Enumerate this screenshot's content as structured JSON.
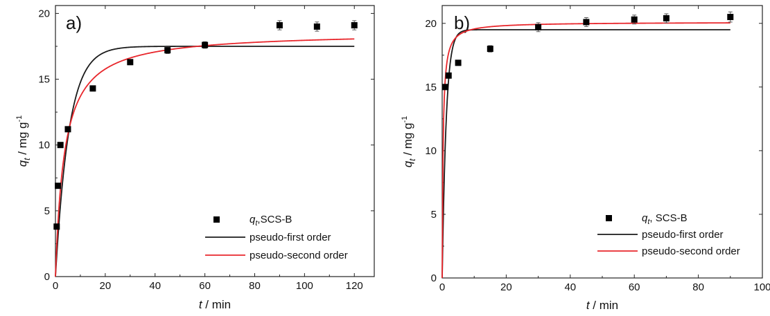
{
  "chart_data": [
    {
      "type": "scatter",
      "panel_label": "a)",
      "xlabel_italic": "t",
      "xlabel_rest": " / min",
      "ylabel_main": "q",
      "ylabel_sub": "t",
      "ylabel_rest": " / mg g",
      "ylabel_sup": "-1",
      "xlim": [
        0,
        128
      ],
      "ylim": [
        0,
        20.6
      ],
      "xticks": [
        0,
        20,
        40,
        60,
        80,
        100,
        120
      ],
      "yticks": [
        0,
        5,
        10,
        15,
        20
      ],
      "legend_position": "bottom-center",
      "series": [
        {
          "name_italic": "q",
          "name_sub": "t",
          "name_rest": ",SCS-B",
          "kind": "points",
          "color": "#000000",
          "x": [
            0.5,
            1,
            2,
            5,
            15,
            30,
            45,
            60,
            90,
            105,
            120
          ],
          "y": [
            3.8,
            6.9,
            10.0,
            11.2,
            14.3,
            16.3,
            17.2,
            17.6,
            19.1,
            19.0,
            19.1
          ],
          "err": [
            0.1,
            0.1,
            0.1,
            0.15,
            0.2,
            0.2,
            0.25,
            0.25,
            0.35,
            0.35,
            0.35
          ]
        },
        {
          "name": "pseudo-first order",
          "kind": "pfo",
          "color": "#1a1a1a",
          "qe": 17.5,
          "k1": 0.185
        },
        {
          "name": "pseudo-second order",
          "kind": "pso",
          "color": "#e8262b",
          "qe": 18.6,
          "k2": 0.015
        }
      ]
    },
    {
      "type": "scatter",
      "panel_label": "b)",
      "xlabel_italic": "t",
      "xlabel_rest": " / min",
      "ylabel_main": "q",
      "ylabel_sub": "t",
      "ylabel_rest": " / mg g",
      "ylabel_sup": "-1",
      "xlim": [
        0,
        100
      ],
      "ylim": [
        0,
        21.4
      ],
      "xticks": [
        0,
        20,
        40,
        60,
        80,
        100
      ],
      "yticks": [
        0,
        5,
        10,
        15,
        20
      ],
      "legend_position": "bottom-center",
      "series": [
        {
          "name_italic": "q",
          "name_sub": "t",
          "name_rest": ", SCS-B",
          "kind": "points",
          "color": "#000000",
          "x": [
            1,
            2,
            5,
            15,
            30,
            45,
            60,
            70,
            90
          ],
          "y": [
            15.0,
            15.9,
            16.9,
            18.0,
            19.7,
            20.1,
            20.3,
            20.4,
            20.5
          ],
          "err": [
            0.15,
            0.15,
            0.2,
            0.25,
            0.35,
            0.35,
            0.35,
            0.35,
            0.4
          ]
        },
        {
          "name": "pseudo-first order",
          "kind": "pfo",
          "color": "#1a1a1a",
          "qe": 19.5,
          "k1": 0.8
        },
        {
          "name": "pseudo-second order",
          "kind": "pso",
          "color": "#e8262b",
          "qe": 20.1,
          "k2": 0.18
        }
      ]
    }
  ]
}
